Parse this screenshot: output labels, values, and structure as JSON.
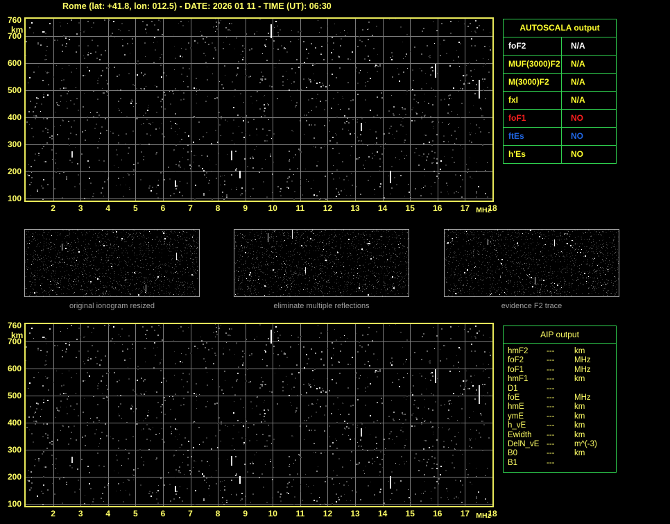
{
  "title": "Rome (lat: +41.8, lon: 012.5) - DATE: 2026 01 11 - TIME (UT): 06:30",
  "colors": {
    "yellow": "#ffff66",
    "border-yellow": "#e9e95a",
    "green": "#2fd24f",
    "table-yellow": "#ffff2e",
    "white": "#ffffff",
    "red": "#ff1f1f",
    "blue": "#2168e8",
    "caption": "#9e9e9e",
    "grid": "#7a7a7a"
  },
  "ionogram": {
    "y_unit": "km",
    "y_ticks": [
      "760",
      "700",
      "600",
      "500",
      "400",
      "300",
      "200",
      "100"
    ],
    "x_ticks": [
      "2",
      "3",
      "4",
      "5",
      "6",
      "7",
      "8",
      "9",
      "10",
      "11",
      "12",
      "13",
      "14",
      "15",
      "16",
      "17",
      "18"
    ],
    "x_unit": "MHz"
  },
  "autoscala": {
    "header": "AUTOSCALA output",
    "rows": [
      {
        "label": "foF2",
        "value": "N/A",
        "color": "white"
      },
      {
        "label": "MUF(3000)F2",
        "value": "N/A",
        "color": "table-yellow"
      },
      {
        "label": "M(3000)F2",
        "value": "N/A",
        "color": "table-yellow"
      },
      {
        "label": "fxI",
        "value": "N/A",
        "color": "table-yellow"
      },
      {
        "label": "foF1",
        "value": "NO",
        "color": "red"
      },
      {
        "label": "ftEs",
        "value": "NO",
        "color": "blue"
      },
      {
        "label": "h'Es",
        "value": "NO",
        "color": "table-yellow"
      }
    ]
  },
  "aip": {
    "header": "AIP output",
    "rows": [
      {
        "label": "hmF2",
        "value": "---",
        "unit": "km"
      },
      {
        "label": "foF2",
        "value": "---",
        "unit": "MHz"
      },
      {
        "label": "foF1",
        "value": "---",
        "unit": "MHz"
      },
      {
        "label": "hmF1",
        "value": "---",
        "unit": "km"
      },
      {
        "label": "D1",
        "value": "---",
        "unit": ""
      },
      {
        "label": "foE",
        "value": "---",
        "unit": "MHz"
      },
      {
        "label": "hmE",
        "value": "---",
        "unit": "km"
      },
      {
        "label": "ymE",
        "value": "---",
        "unit": "km"
      },
      {
        "label": "h_vE",
        "value": "---",
        "unit": "km"
      },
      {
        "label": "Ewidth",
        "value": "---",
        "unit": "km"
      },
      {
        "label": "DelN_vE",
        "value": "---",
        "unit": "m^(-3)"
      },
      {
        "label": "B0",
        "value": "---",
        "unit": "km"
      },
      {
        "label": "B1",
        "value": "---",
        "unit": ""
      }
    ]
  },
  "thumbnails": [
    {
      "caption": "original ionogram resized"
    },
    {
      "caption": "eliminate multiple reflections"
    },
    {
      "caption": "evidence F2 trace"
    }
  ]
}
